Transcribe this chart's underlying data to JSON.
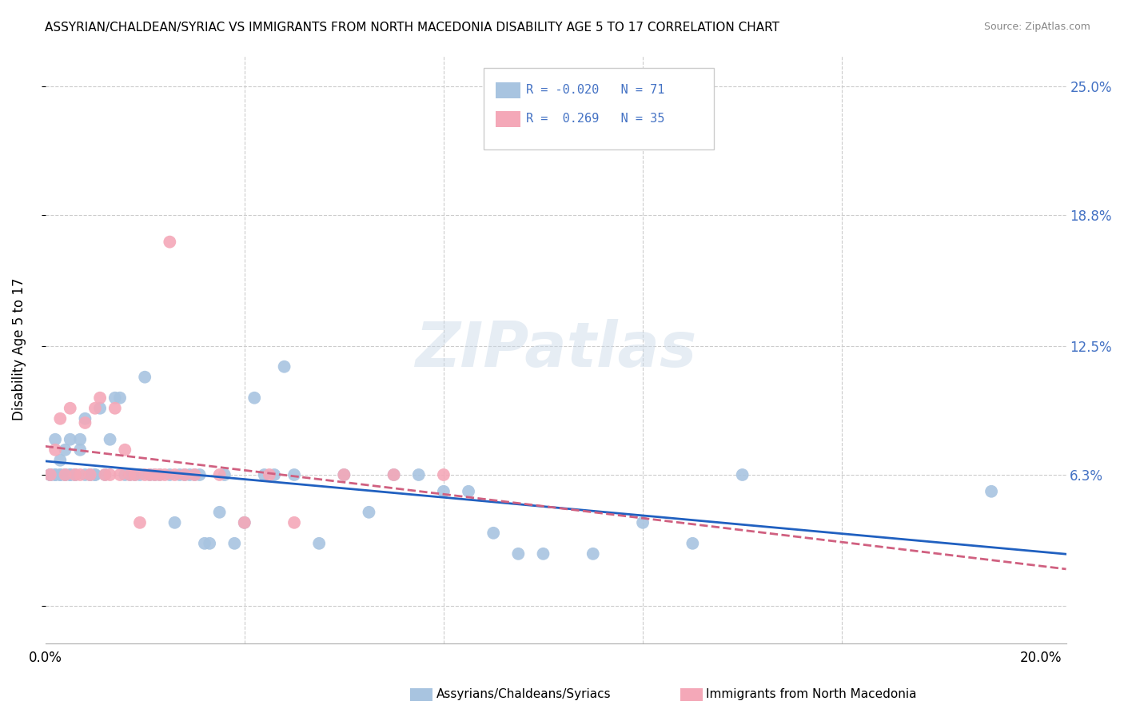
{
  "title": "ASSYRIAN/CHALDEAN/SYRIAC VS IMMIGRANTS FROM NORTH MACEDONIA DISABILITY AGE 5 TO 17 CORRELATION CHART",
  "source": "Source: ZipAtlas.com",
  "ylabel": "Disability Age 5 to 17",
  "ytick_vals": [
    0.0,
    0.063,
    0.125,
    0.188,
    0.25
  ],
  "ytick_labels": [
    "",
    "6.3%",
    "12.5%",
    "18.8%",
    "25.0%"
  ],
  "xlim": [
    0.0,
    0.205
  ],
  "ylim": [
    -0.018,
    0.265
  ],
  "blue_R": "-0.020",
  "blue_N": "71",
  "pink_R": "0.269",
  "pink_N": "35",
  "blue_color": "#a8c4e0",
  "pink_color": "#f4a8b8",
  "blue_line_color": "#2060c0",
  "pink_line_color": "#d06080",
  "legend_label_blue": "Assyrians/Chaldeans/Syriacs",
  "legend_label_pink": "Immigrants from North Macedonia",
  "watermark": "ZIPatlas",
  "blue_scatter_x": [
    0.001,
    0.001,
    0.002,
    0.002,
    0.002,
    0.003,
    0.003,
    0.003,
    0.004,
    0.004,
    0.004,
    0.005,
    0.005,
    0.005,
    0.006,
    0.006,
    0.007,
    0.007,
    0.008,
    0.008,
    0.009,
    0.009,
    0.01,
    0.01,
    0.011,
    0.012,
    0.013,
    0.014,
    0.015,
    0.016,
    0.017,
    0.018,
    0.019,
    0.02,
    0.021,
    0.022,
    0.023,
    0.025,
    0.026,
    0.027,
    0.028,
    0.029,
    0.03,
    0.031,
    0.032,
    0.033,
    0.035,
    0.036,
    0.038,
    0.04,
    0.042,
    0.044,
    0.046,
    0.048,
    0.05,
    0.055,
    0.06,
    0.065,
    0.07,
    0.075,
    0.08,
    0.085,
    0.09,
    0.095,
    0.1,
    0.11,
    0.12,
    0.13,
    0.14,
    0.19,
    0.001
  ],
  "blue_scatter_y": [
    0.063,
    0.063,
    0.063,
    0.08,
    0.063,
    0.063,
    0.063,
    0.07,
    0.063,
    0.063,
    0.075,
    0.063,
    0.063,
    0.08,
    0.063,
    0.063,
    0.075,
    0.08,
    0.09,
    0.063,
    0.063,
    0.063,
    0.063,
    0.063,
    0.095,
    0.063,
    0.08,
    0.1,
    0.1,
    0.063,
    0.063,
    0.063,
    0.063,
    0.11,
    0.063,
    0.063,
    0.063,
    0.063,
    0.04,
    0.063,
    0.063,
    0.063,
    0.063,
    0.063,
    0.03,
    0.03,
    0.045,
    0.063,
    0.03,
    0.04,
    0.1,
    0.063,
    0.063,
    0.115,
    0.063,
    0.03,
    0.063,
    0.045,
    0.063,
    0.063,
    0.055,
    0.055,
    0.035,
    0.025,
    0.025,
    0.025,
    0.04,
    0.03,
    0.063,
    0.055,
    0.063
  ],
  "pink_scatter_x": [
    0.001,
    0.002,
    0.003,
    0.004,
    0.005,
    0.006,
    0.007,
    0.008,
    0.009,
    0.01,
    0.011,
    0.012,
    0.013,
    0.014,
    0.015,
    0.016,
    0.017,
    0.018,
    0.019,
    0.02,
    0.021,
    0.022,
    0.023,
    0.024,
    0.025,
    0.026,
    0.028,
    0.03,
    0.035,
    0.04,
    0.045,
    0.05,
    0.06,
    0.07,
    0.08
  ],
  "pink_scatter_y": [
    0.063,
    0.075,
    0.09,
    0.063,
    0.095,
    0.063,
    0.063,
    0.088,
    0.063,
    0.095,
    0.1,
    0.063,
    0.063,
    0.095,
    0.063,
    0.075,
    0.063,
    0.063,
    0.04,
    0.063,
    0.063,
    0.063,
    0.063,
    0.063,
    0.175,
    0.063,
    0.063,
    0.063,
    0.063,
    0.04,
    0.063,
    0.04,
    0.063,
    0.063,
    0.063
  ]
}
